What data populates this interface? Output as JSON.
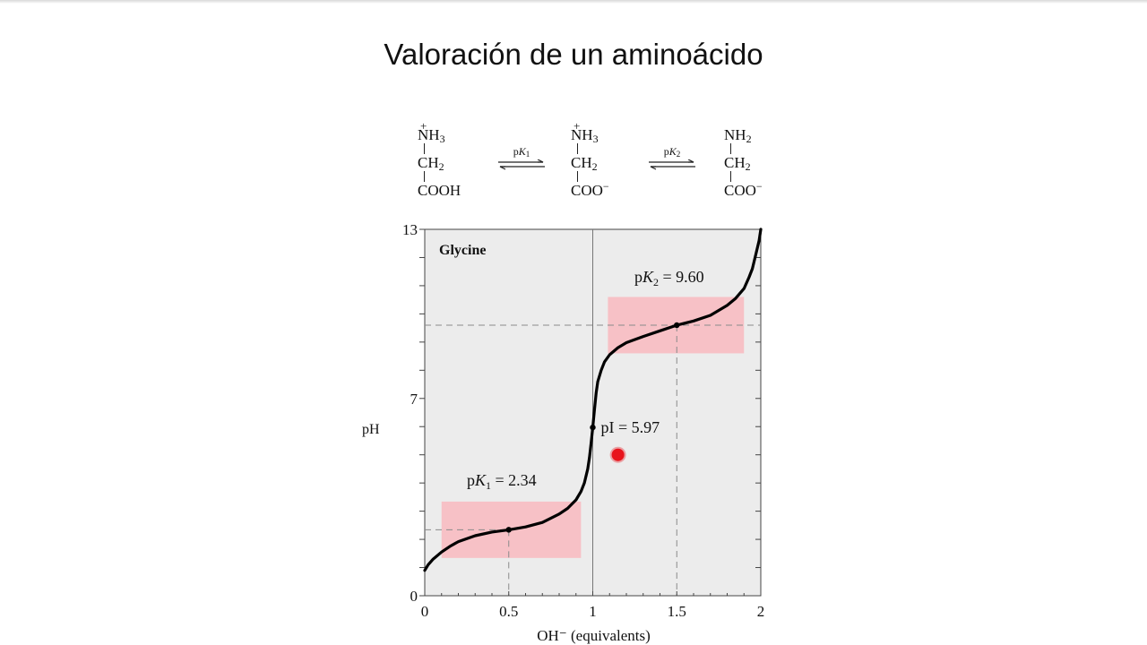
{
  "slide": {
    "title": "Valoración de un aminoácido"
  },
  "scheme": {
    "species": [
      {
        "charge": "+",
        "top": "NH",
        "top_sub": "3",
        "mid": "CH",
        "mid_sub": "2",
        "bottom": "COOH",
        "bottom_sup": ""
      },
      {
        "charge": "+",
        "top": "NH",
        "top_sub": "3",
        "mid": "CH",
        "mid_sub": "2",
        "bottom": "COO",
        "bottom_sup": "−"
      },
      {
        "charge": "",
        "top": "NH",
        "top_sub": "2",
        "mid": "CH",
        "mid_sub": "2",
        "bottom": "COO",
        "bottom_sup": "−"
      }
    ],
    "equilibria": [
      {
        "p": "p",
        "k": "K",
        "sub": "1"
      },
      {
        "p": "p",
        "k": "K",
        "sub": "2"
      }
    ]
  },
  "chart_data": {
    "type": "line",
    "title": "Glycine",
    "xlabel": "OH⁻ (equivalents)",
    "ylabel": "pH",
    "xlim": [
      0,
      2
    ],
    "ylim": [
      0,
      13
    ],
    "x_ticks": [
      "0",
      "0.5",
      "1",
      "1.5",
      "2"
    ],
    "y_ticks": [
      "0",
      "7",
      "13"
    ],
    "series": [
      {
        "x": [
          0.0,
          0.02,
          0.05,
          0.1,
          0.15,
          0.2,
          0.3,
          0.4,
          0.5,
          0.6,
          0.7,
          0.8,
          0.85,
          0.9,
          0.93,
          0.95,
          0.97,
          0.98,
          0.99,
          1.0,
          1.01,
          1.02,
          1.03,
          1.05,
          1.07,
          1.1,
          1.15,
          1.2,
          1.3,
          1.4,
          1.5,
          1.6,
          1.7,
          1.8,
          1.85,
          1.9,
          1.93,
          1.95,
          1.97,
          1.99,
          2.0
        ],
        "y": [
          0.9,
          1.1,
          1.3,
          1.55,
          1.75,
          1.92,
          2.13,
          2.26,
          2.34,
          2.44,
          2.6,
          2.9,
          3.1,
          3.4,
          3.7,
          4.0,
          4.5,
          4.9,
          5.4,
          5.97,
          6.6,
          7.2,
          7.6,
          8.0,
          8.3,
          8.55,
          8.8,
          8.98,
          9.2,
          9.4,
          9.6,
          9.75,
          9.95,
          10.3,
          10.55,
          10.9,
          11.3,
          11.6,
          12.1,
          12.6,
          13.0
        ]
      }
    ],
    "points": [
      {
        "x": 0.5,
        "y": 2.34
      },
      {
        "x": 1.0,
        "y": 5.97
      },
      {
        "x": 1.5,
        "y": 9.6
      }
    ],
    "buffer_regions": [
      {
        "x0": 0.1,
        "x1": 0.93,
        "y0": 1.34,
        "y1": 3.34
      },
      {
        "x0": 1.09,
        "x1": 1.9,
        "y0": 8.6,
        "y1": 10.6
      }
    ],
    "annotations": {
      "pk1": {
        "p": "p",
        "k": "K",
        "sub": "1",
        "value": " = 2.34"
      },
      "pk2": {
        "p": "p",
        "k": "K",
        "sub": "2",
        "value": " = 9.60"
      },
      "pi": "pI = 5.97"
    },
    "reference_lines": {
      "x": [
        0.5,
        1.5
      ],
      "y": [
        2.34,
        9.6
      ],
      "solid_x": 1.0
    },
    "grid": false,
    "colors": {
      "plot_bg": "#ececec",
      "buffer": "#f7c1c6",
      "curve": "#000000",
      "cursor": "#e8141c",
      "dashed": "#8a8a8a"
    },
    "cursor": {
      "x": 1.15,
      "y": 5.0
    }
  }
}
